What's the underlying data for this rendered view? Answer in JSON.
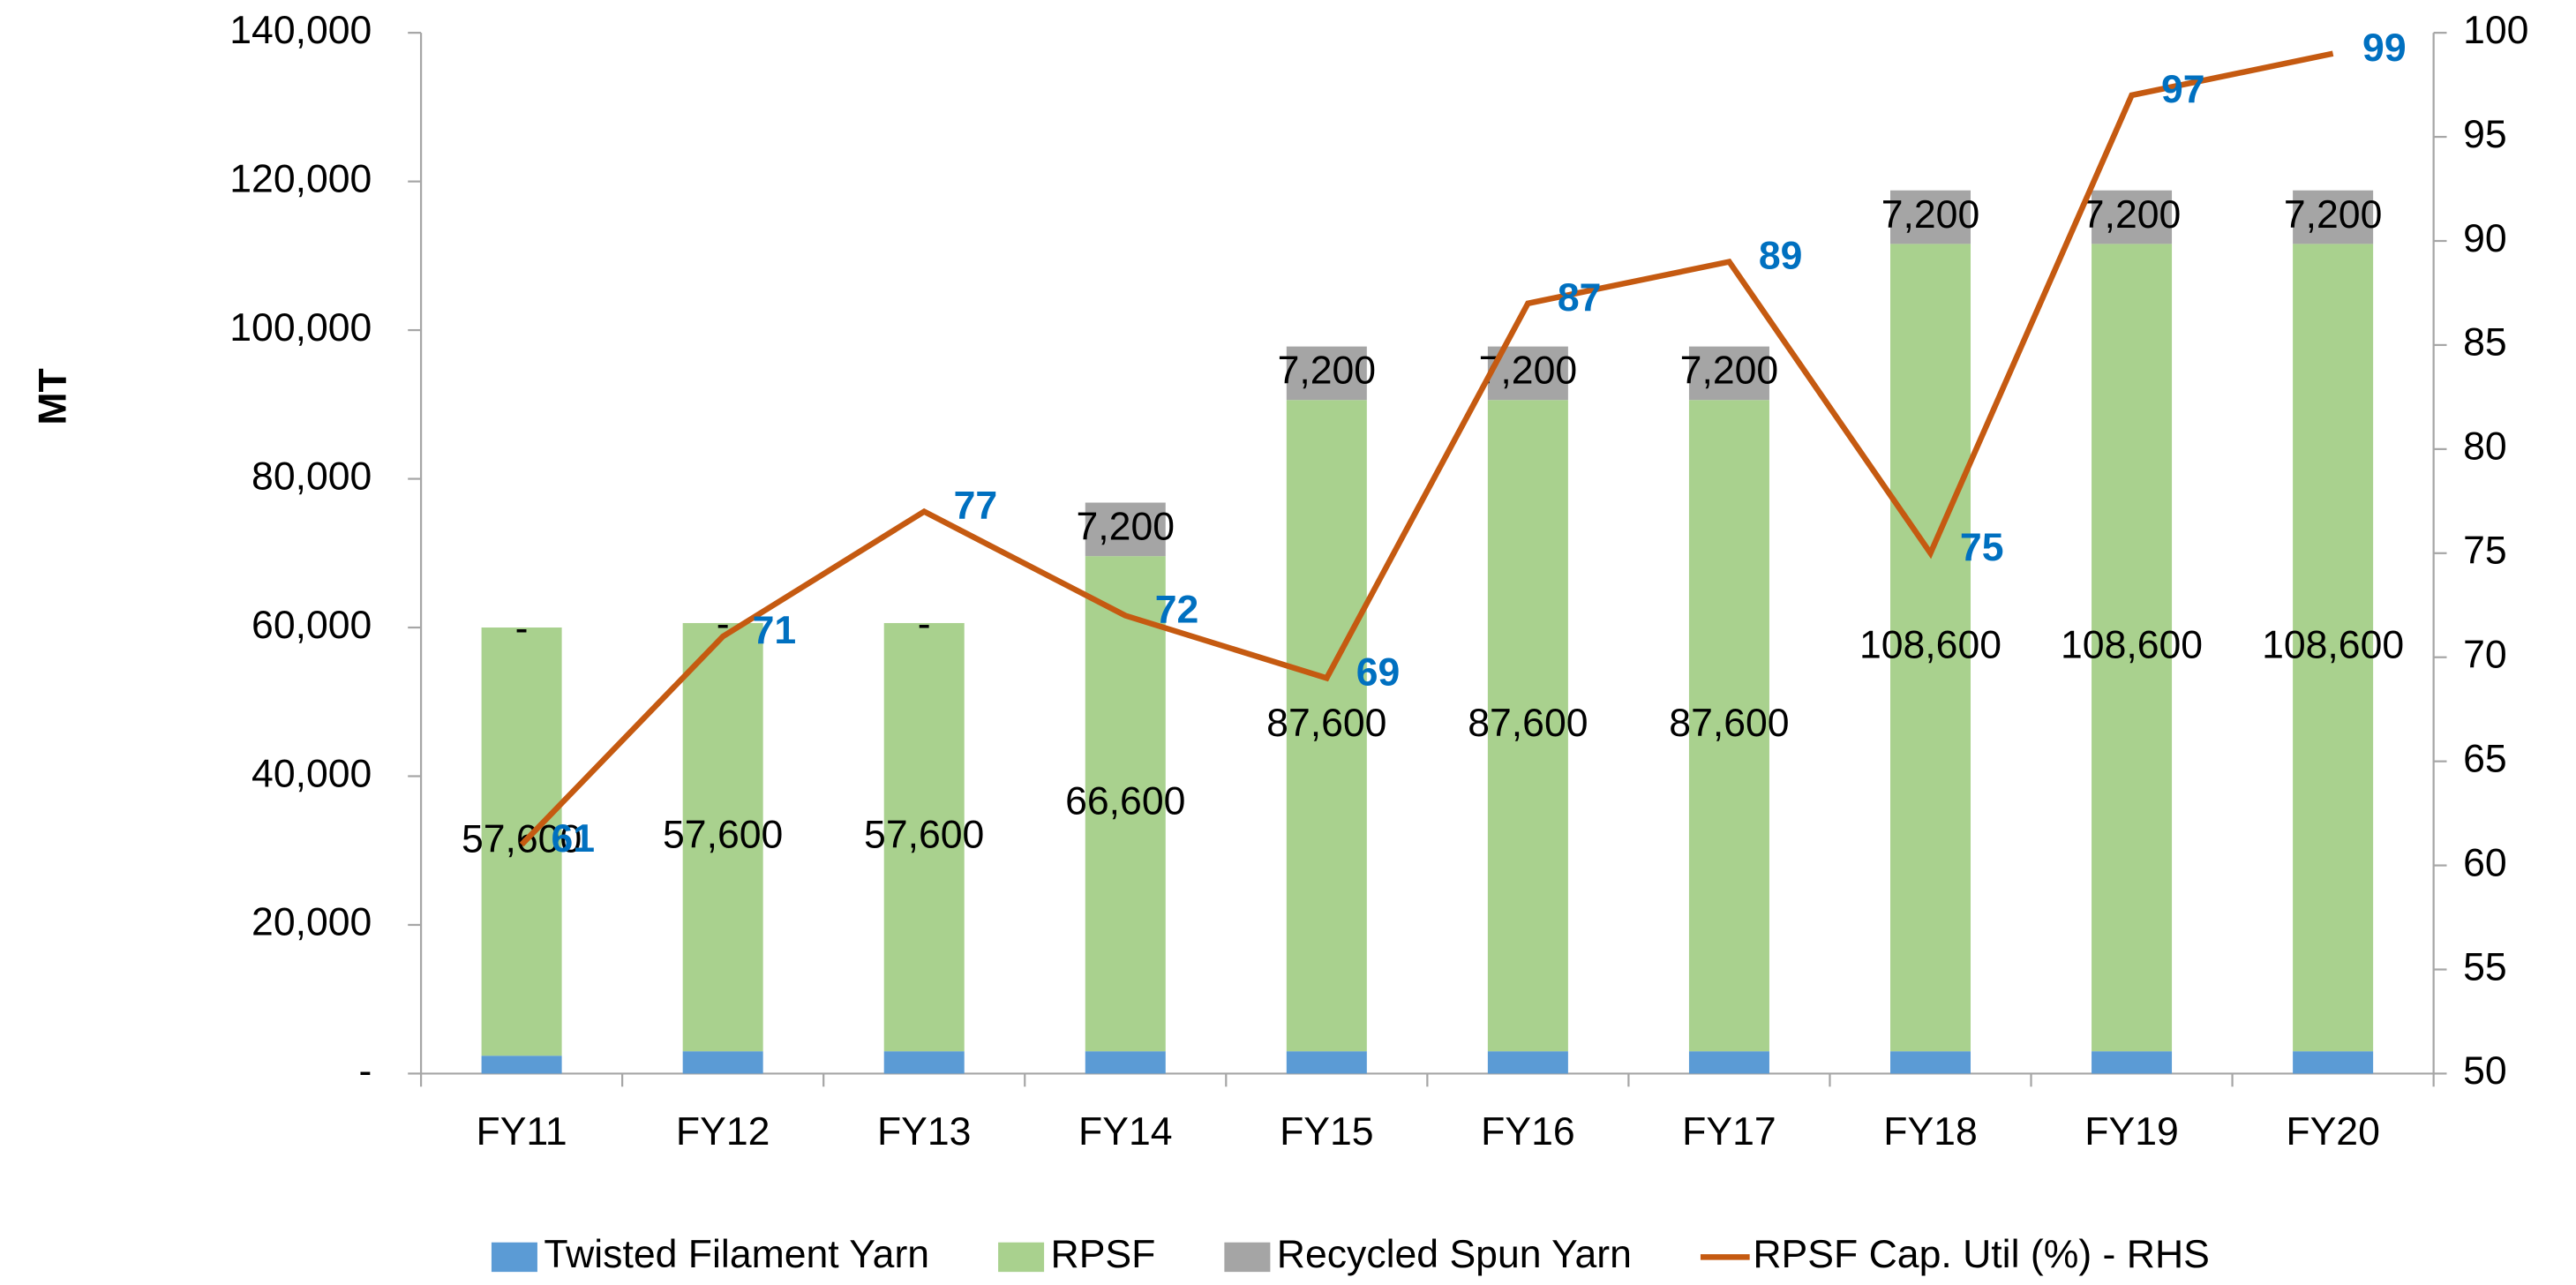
{
  "chart_data": {
    "type": "bar-line",
    "y_label": "MT",
    "categories": [
      "FY11",
      "FY12",
      "FY13",
      "FY14",
      "FY15",
      "FY16",
      "FY17",
      "FY18",
      "FY19",
      "FY20"
    ],
    "series": [
      {
        "name": "Twisted Filament Yarn",
        "color": "#5b9bd5",
        "type": "bar",
        "values": [
          2400,
          3000,
          3000,
          3000,
          3000,
          3000,
          3000,
          3000,
          3000,
          3000
        ]
      },
      {
        "name": "RPSF",
        "color": "#a9d18e",
        "type": "bar",
        "values": [
          57600,
          57600,
          57600,
          66600,
          87600,
          87600,
          87600,
          108600,
          108600,
          108600
        ],
        "value_labels": [
          "57,600",
          "57,600",
          "57,600",
          "66,600",
          "87,600",
          "87,600",
          "87,600",
          "108,600",
          "108,600",
          "108,600"
        ]
      },
      {
        "name": "Recycled Spun Yarn",
        "color": "#a5a5a5",
        "type": "bar",
        "values": [
          0,
          0,
          0,
          7200,
          7200,
          7200,
          7200,
          7200,
          7200,
          7200
        ],
        "value_labels": [
          "-",
          "-",
          "-",
          "7,200",
          "7,200",
          "7,200",
          "7,200",
          "7,200",
          "7,200",
          "7,200"
        ]
      },
      {
        "name": "RPSF Cap. Util (%) - RHS",
        "color": "#c55a11",
        "type": "line",
        "axis": "y2",
        "values": [
          61,
          71,
          77,
          72,
          69,
          87,
          89,
          75,
          97,
          99
        ]
      }
    ],
    "ylim": [
      0,
      140000
    ],
    "yticks": [
      {
        "value": 0,
        "label": "-"
      },
      {
        "value": 20000,
        "label": "20,000"
      },
      {
        "value": 40000,
        "label": "40,000"
      },
      {
        "value": 60000,
        "label": "60,000"
      },
      {
        "value": 80000,
        "label": "80,000"
      },
      {
        "value": 100000,
        "label": "100,000"
      },
      {
        "value": 120000,
        "label": "120,000"
      },
      {
        "value": 140000,
        "label": "140,000"
      }
    ],
    "y2lim": [
      50,
      100
    ],
    "y2ticks": [
      50,
      55,
      60,
      65,
      70,
      75,
      80,
      85,
      90,
      95,
      100
    ],
    "legend": "bottom"
  }
}
